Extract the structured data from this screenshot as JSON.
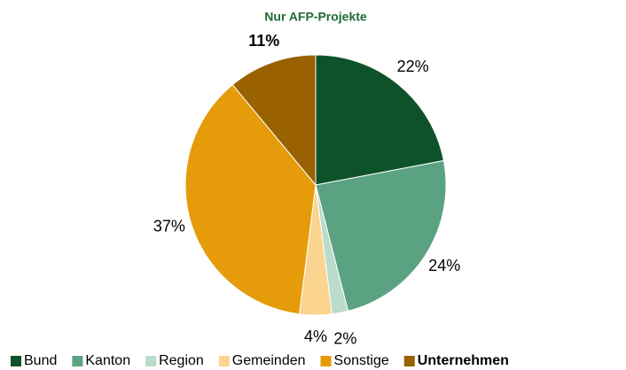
{
  "chart_data": {
    "type": "pie",
    "title": "Nur AFP-Projekte",
    "categories": [
      "Bund",
      "Kanton",
      "Region",
      "Gemeinden",
      "Sonstige",
      "Unternehmen"
    ],
    "values": [
      22,
      24,
      2,
      4,
      37,
      11
    ],
    "value_labels": [
      "22%",
      "24%",
      "2%",
      "4%",
      "37%",
      "11%"
    ],
    "colors": [
      "#0e5229",
      "#5ba283",
      "#bcdccb",
      "#fbd48f",
      "#e59b0a",
      "#996100"
    ],
    "bold": [
      5
    ],
    "legend": "bottom"
  }
}
